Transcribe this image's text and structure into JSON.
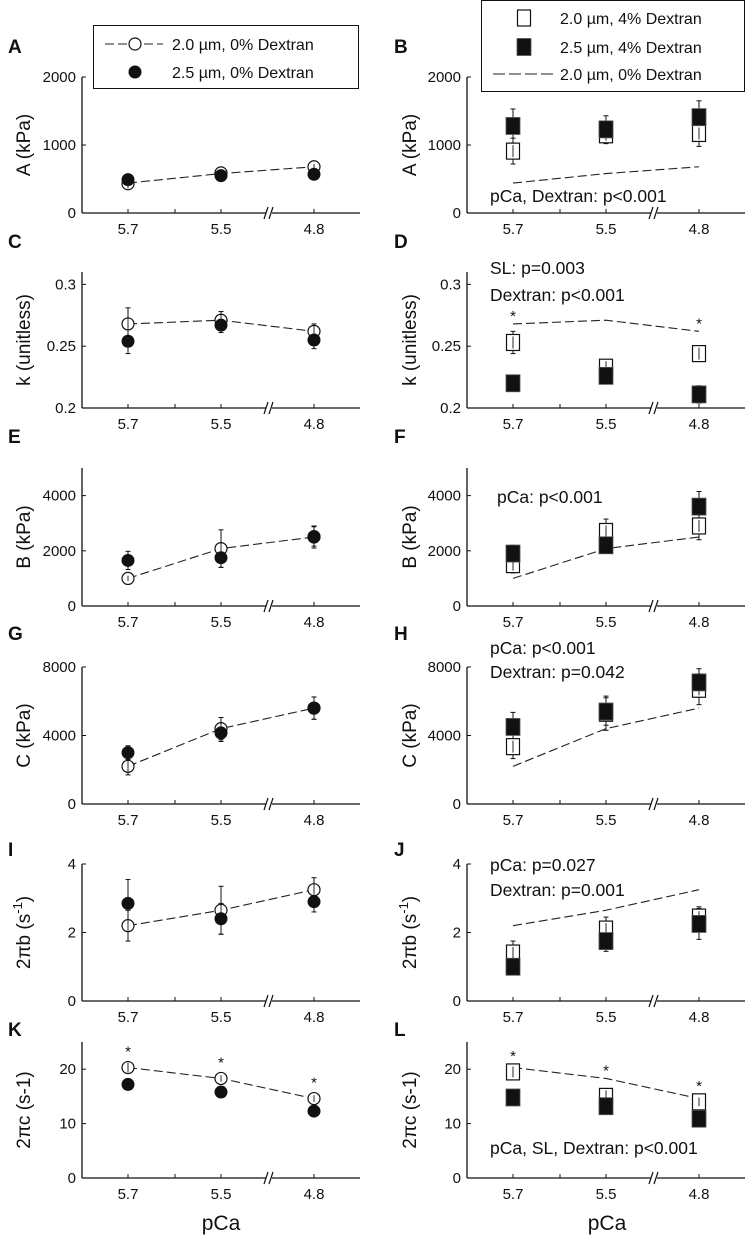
{
  "chart_data": {
    "type": "scatter",
    "x_categories": [
      "5.7",
      "5.5",
      "4.8"
    ],
    "xlabel": "pCa",
    "legend_left": [
      {
        "label": "2.0 µm, 0% Dextran",
        "marker": "open-circle",
        "line": "dashed"
      },
      {
        "label": "2.5 µm, 0% Dextran",
        "marker": "filled-circle"
      }
    ],
    "legend_right": [
      {
        "label": "2.0 µm, 4% Dextran",
        "marker": "open-square"
      },
      {
        "label": "2.5 µm, 4% Dextran",
        "marker": "filled-square"
      },
      {
        "label": "2.0 µm, 0% Dextran",
        "marker": "none",
        "line": "dashed"
      }
    ],
    "panels": [
      {
        "letter": "A",
        "ylabel": "A (kPa)",
        "ylim": [
          0,
          2000
        ],
        "yticks": [
          "0",
          "1000",
          "2000"
        ],
        "ytick_values": [
          0,
          1000,
          2000
        ],
        "series": [
          {
            "name": "2.0 µm, 0% Dextran",
            "marker": "open-circle",
            "values": [
              430,
              590,
              680
            ],
            "err": [
              70,
              40,
              40
            ]
          },
          {
            "name": "2.5 µm, 0% Dextran",
            "marker": "filled-circle",
            "values": [
              490,
              550,
              570
            ],
            "err": [
              50,
              40,
              40
            ]
          }
        ],
        "line": [
          440,
          580,
          680
        ],
        "annotations": [],
        "stars": []
      },
      {
        "letter": "B",
        "ylabel": "A (kPa)",
        "ylim": [
          0,
          2000
        ],
        "yticks": [
          "0",
          "1000",
          "2000"
        ],
        "ytick_values": [
          0,
          1000,
          2000
        ],
        "series": [
          {
            "name": "2.0 µm, 4% Dextran",
            "marker": "open-square",
            "values": [
              910,
              1150,
              1170
            ],
            "err": [
              190,
              130,
              190
            ]
          },
          {
            "name": "2.5 µm, 4% Dextran",
            "marker": "filled-square",
            "values": [
              1280,
              1230,
              1410
            ],
            "err": [
              250,
              200,
              240
            ]
          }
        ],
        "line": [
          440,
          580,
          680
        ],
        "annotations": [
          "pCa, Dextran: p<0.001"
        ],
        "stars": []
      },
      {
        "letter": "C",
        "ylabel": "k (unitless)",
        "ylim": [
          0.2,
          0.31
        ],
        "yticks": [
          "0.2",
          "0.25",
          "0.3"
        ],
        "ytick_values": [
          0.2,
          0.25,
          0.3
        ],
        "series": [
          {
            "name": "2.0 µm, 0% Dextran",
            "marker": "open-circle",
            "values": [
              0.268,
              0.271,
              0.262
            ],
            "err": [
              0.013,
              0.007,
              0.006
            ]
          },
          {
            "name": "2.5 µm, 0% Dextran",
            "marker": "filled-circle",
            "values": [
              0.254,
              0.267,
              0.255
            ],
            "err": [
              0.01,
              0.006,
              0.007
            ]
          }
        ],
        "line": [
          0.268,
          0.271,
          0.262
        ],
        "annotations": [],
        "stars": []
      },
      {
        "letter": "D",
        "ylabel": "k (unitless)",
        "ylim": [
          0.2,
          0.31
        ],
        "yticks": [
          "0.2",
          "0.25",
          "0.3"
        ],
        "ytick_values": [
          0.2,
          0.25,
          0.3
        ],
        "series": [
          {
            "name": "2.0 µm, 4% Dextran",
            "marker": "open-square",
            "values": [
              0.253,
              0.233,
              0.244
            ],
            "err": [
              0.009,
              0.006,
              0.006
            ]
          },
          {
            "name": "2.5 µm, 4% Dextran",
            "marker": "filled-square",
            "values": [
              0.22,
              0.226,
              0.211
            ],
            "err": [
              0.005,
              0.006,
              0.007
            ]
          }
        ],
        "line": [
          0.268,
          0.271,
          0.262
        ],
        "annotations": [
          "SL: p=0.003",
          "Dextran: p<0.001"
        ],
        "stars": [
          0,
          2
        ]
      },
      {
        "letter": "E",
        "ylabel": "B (kPa)",
        "ylim": [
          0,
          5000
        ],
        "yticks": [
          "0",
          "2000",
          "4000"
        ],
        "ytick_values": [
          0,
          2000,
          4000
        ],
        "series": [
          {
            "name": "2.0 µm, 0% Dextran",
            "marker": "open-circle",
            "values": [
              1000,
              2080,
              2500
            ],
            "err": [
              100,
              680,
              400
            ]
          },
          {
            "name": "2.5 µm, 0% Dextran",
            "marker": "filled-circle",
            "values": [
              1650,
              1750,
              2520
            ],
            "err": [
              330,
              350,
              350
            ]
          }
        ],
        "line": [
          1000,
          2080,
          2500
        ],
        "annotations": [],
        "stars": []
      },
      {
        "letter": "F",
        "ylabel": "B (kPa)",
        "ylim": [
          0,
          5000
        ],
        "yticks": [
          "0",
          "2000",
          "4000"
        ],
        "ytick_values": [
          0,
          2000,
          4000
        ],
        "series": [
          {
            "name": "2.0 µm, 4% Dextran",
            "marker": "open-square",
            "values": [
              1500,
              2700,
              2900
            ],
            "err": [
              300,
              450,
              500
            ]
          },
          {
            "name": "2.5 µm, 4% Dextran",
            "marker": "filled-square",
            "values": [
              1900,
              2200,
              3600
            ],
            "err": [
              300,
              250,
              550
            ]
          }
        ],
        "line": [
          1000,
          2080,
          2500
        ],
        "annotations": [
          "pCa: p<0.001"
        ],
        "stars": []
      },
      {
        "letter": "G",
        "ylabel": "C (kPa)",
        "ylim": [
          0,
          8000
        ],
        "yticks": [
          "0",
          "4000",
          "8000"
        ],
        "ytick_values": [
          0,
          4000,
          8000
        ],
        "series": [
          {
            "name": "2.0 µm, 0% Dextran",
            "marker": "open-circle",
            "values": [
              2200,
              4400,
              5600
            ],
            "err": [
              500,
              650,
              650
            ]
          },
          {
            "name": "2.5 µm, 0% Dextran",
            "marker": "filled-circle",
            "values": [
              3000,
              4150,
              5600
            ],
            "err": [
              400,
              500,
              650
            ]
          }
        ],
        "line": [
          2200,
          4400,
          5600
        ],
        "annotations": [],
        "stars": []
      },
      {
        "letter": "H",
        "ylabel": "C (kPa)",
        "ylim": [
          0,
          8000
        ],
        "yticks": [
          "0",
          "4000",
          "8000"
        ],
        "ytick_values": [
          0,
          4000,
          8000
        ],
        "series": [
          {
            "name": "2.0 µm, 4% Dextran",
            "marker": "open-square",
            "values": [
              3350,
              5300,
              6700
            ],
            "err": [
              700,
              1000,
              900
            ]
          },
          {
            "name": "2.5 µm, 4% Dextran",
            "marker": "filled-square",
            "values": [
              4500,
              5400,
              7100
            ],
            "err": [
              850,
              800,
              800
            ]
          }
        ],
        "line": [
          2200,
          4400,
          5600
        ],
        "annotations": [
          "pCa: p<0.001",
          "Dextran: p=0.042"
        ],
        "stars": []
      },
      {
        "letter": "I",
        "ylabel": "2πb (s",
        "ylabel_sup": "-1",
        "ylabel_end": ")",
        "ylim": [
          0,
          4
        ],
        "yticks": [
          "0",
          "2",
          "4"
        ],
        "ytick_values": [
          0,
          2,
          4
        ],
        "series": [
          {
            "name": "2.0 µm, 0% Dextran",
            "marker": "open-circle",
            "values": [
              2.2,
              2.65,
              3.25
            ],
            "err": [
              0.45,
              0.7,
              0.35
            ]
          },
          {
            "name": "2.5 µm, 0% Dextran",
            "marker": "filled-circle",
            "values": [
              2.85,
              2.4,
              2.9
            ],
            "err": [
              0.7,
              0.45,
              0.3
            ]
          }
        ],
        "line": [
          2.2,
          2.65,
          3.25
        ],
        "annotations": [],
        "stars": []
      },
      {
        "letter": "J",
        "ylabel": "2πb (s",
        "ylabel_sup": "-1",
        "ylabel_end": ")",
        "ylim": [
          0,
          4
        ],
        "yticks": [
          "0",
          "2",
          "4"
        ],
        "ytick_values": [
          0,
          2,
          4
        ],
        "series": [
          {
            "name": "2.0 µm, 4% Dextran",
            "marker": "open-square",
            "values": [
              1.4,
              2.1,
              2.45
            ],
            "err": [
              0.35,
              0.35,
              0.3
            ]
          },
          {
            "name": "2.5 µm, 4% Dextran",
            "marker": "filled-square",
            "values": [
              1.0,
              1.75,
              2.25
            ],
            "err": [
              0.2,
              0.3,
              0.45
            ]
          }
        ],
        "line": [
          2.2,
          2.65,
          3.25
        ],
        "annotations": [
          "pCa: p=0.027",
          "Dextran: p=0.001"
        ],
        "stars": []
      },
      {
        "letter": "K",
        "ylabel": "2πc (s-1)",
        "ylim": [
          0,
          25
        ],
        "yticks": [
          "0",
          "10",
          "20"
        ],
        "ytick_values": [
          0,
          10,
          20
        ],
        "series": [
          {
            "name": "2.0 µm, 0% Dextran",
            "marker": "open-circle",
            "values": [
              20.3,
              18.3,
              14.6
            ],
            "err": [
              0.9,
              0.6,
              0.6
            ]
          },
          {
            "name": "2.5 µm, 0% Dextran",
            "marker": "filled-circle",
            "values": [
              17.2,
              15.8,
              12.3
            ],
            "err": [
              0.5,
              0.5,
              0.5
            ]
          }
        ],
        "line": [
          20.3,
          18.3,
          14.6
        ],
        "annotations": [],
        "stars": [
          0,
          1,
          2
        ]
      },
      {
        "letter": "L",
        "ylabel": "2πc (s-1)",
        "ylim": [
          0,
          25
        ],
        "yticks": [
          "0",
          "10",
          "20"
        ],
        "ytick_values": [
          0,
          10,
          20
        ],
        "series": [
          {
            "name": "2.0 µm, 4% Dextran",
            "marker": "open-square",
            "values": [
              19.5,
              15.0,
              14.0
            ],
            "err": [
              1.0,
              1.3,
              0.8
            ]
          },
          {
            "name": "2.5 µm, 4% Dextran",
            "marker": "filled-square",
            "values": [
              14.8,
              13.2,
              10.9
            ],
            "err": [
              0.5,
              0.6,
              0.5
            ]
          }
        ],
        "line": [
          20.3,
          18.3,
          14.6
        ],
        "annotations": [
          "pCa, SL, Dextran: p<0.001"
        ],
        "stars": [
          0,
          1,
          2
        ]
      }
    ]
  }
}
